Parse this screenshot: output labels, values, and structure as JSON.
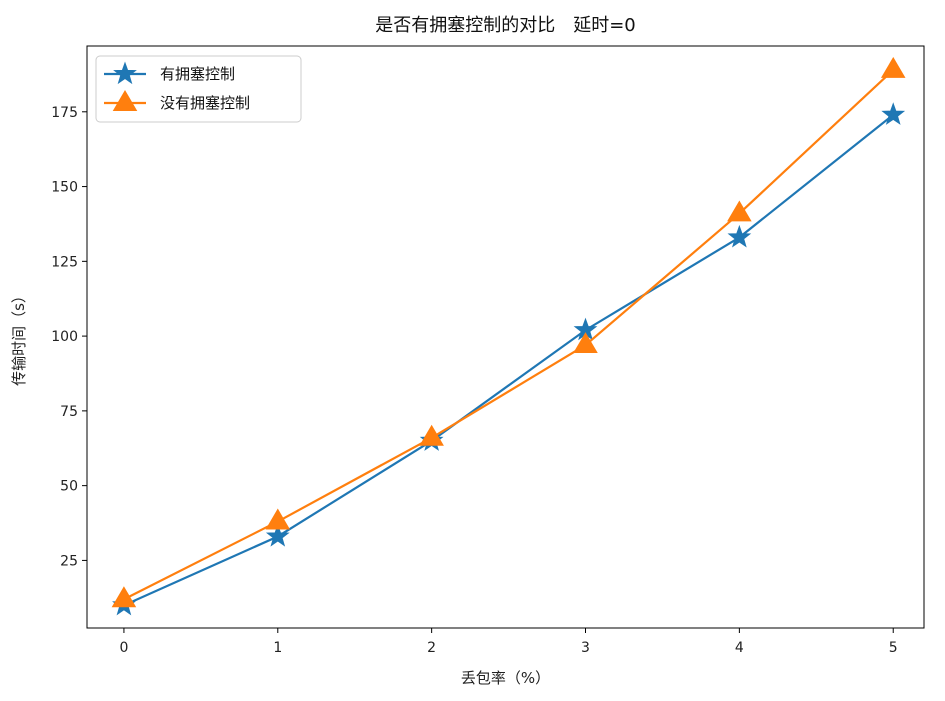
{
  "chart_data": {
    "type": "line",
    "title": "是否有拥塞控制的对比　延时=0",
    "xlabel": "丢包率（%）",
    "ylabel": "传输时间（s）",
    "x": [
      0,
      1,
      2,
      3,
      4,
      5
    ],
    "x_ticks": [
      "0",
      "1",
      "2",
      "3",
      "4",
      "5"
    ],
    "xlim": [
      -0.24,
      5.2
    ],
    "y_ticks": [
      25,
      50,
      75,
      100,
      125,
      150,
      175
    ],
    "y_tick_labels": [
      "25",
      "50",
      "75",
      "100",
      "125",
      "150",
      "175"
    ],
    "ylim": [
      2.4,
      197
    ],
    "grid": false,
    "legend_position": "top-left",
    "series": [
      {
        "name": "有拥塞控制",
        "values": [
          10,
          33,
          65,
          102,
          133,
          174
        ],
        "color": "#1f77b4",
        "marker": "star"
      },
      {
        "name": "没有拥塞控制",
        "values": [
          12,
          38,
          66,
          97,
          141,
          189
        ],
        "color": "#ff7f0e",
        "marker": "triangle"
      }
    ]
  }
}
